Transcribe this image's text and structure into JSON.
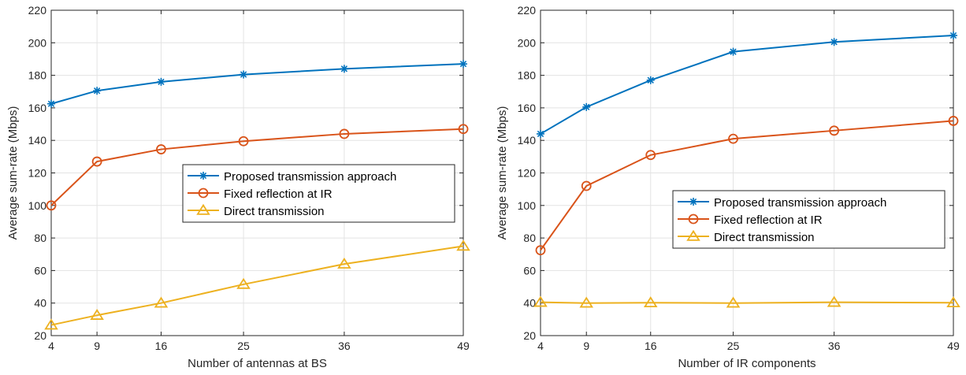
{
  "chart_data": [
    {
      "type": "line",
      "xlabel": "Number of antennas at BS",
      "ylabel": "Average sum-rate (Mbps)",
      "x": [
        4,
        9,
        16,
        25,
        36,
        49
      ],
      "xticks": [
        "4",
        "9",
        "16",
        "25",
        "36",
        "49"
      ],
      "ylim": [
        20,
        220
      ],
      "yticks": [
        "20",
        "40",
        "60",
        "80",
        "100",
        "120",
        "140",
        "160",
        "180",
        "200",
        "220"
      ],
      "grid": true,
      "legend_position": "center-right",
      "series": [
        {
          "name": "Proposed transmission approach",
          "marker": "asterisk",
          "color": "#0072BD",
          "values": [
            162.5,
            170.5,
            176,
            180.5,
            184,
            187
          ]
        },
        {
          "name": "Fixed reflection at IR",
          "marker": "circle",
          "color": "#D95319",
          "values": [
            100,
            127,
            134.5,
            139.5,
            144,
            147
          ]
        },
        {
          "name": "Direct transmission",
          "marker": "triangle",
          "color": "#EDB120",
          "values": [
            26.5,
            32.5,
            40,
            51.5,
            64,
            75
          ]
        }
      ]
    },
    {
      "type": "line",
      "xlabel": "Number of IR components",
      "ylabel": "Average sum-rate (Mbps)",
      "x": [
        4,
        9,
        16,
        25,
        36,
        49
      ],
      "xticks": [
        "4",
        "9",
        "16",
        "25",
        "36",
        "49"
      ],
      "ylim": [
        20,
        220
      ],
      "yticks": [
        "20",
        "40",
        "60",
        "80",
        "100",
        "120",
        "140",
        "160",
        "180",
        "200",
        "220"
      ],
      "grid": true,
      "legend_position": "center-right",
      "series": [
        {
          "name": "Proposed transmission approach",
          "marker": "asterisk",
          "color": "#0072BD",
          "values": [
            144,
            160.5,
            177,
            194.5,
            200.5,
            204.5
          ]
        },
        {
          "name": "Fixed reflection at IR",
          "marker": "circle",
          "color": "#D95319",
          "values": [
            72.5,
            112,
            131,
            141,
            146,
            152
          ]
        },
        {
          "name": "Direct transmission",
          "marker": "triangle",
          "color": "#EDB120",
          "values": [
            40.5,
            40,
            40.2,
            40,
            40.5,
            40.2
          ]
        }
      ]
    }
  ]
}
